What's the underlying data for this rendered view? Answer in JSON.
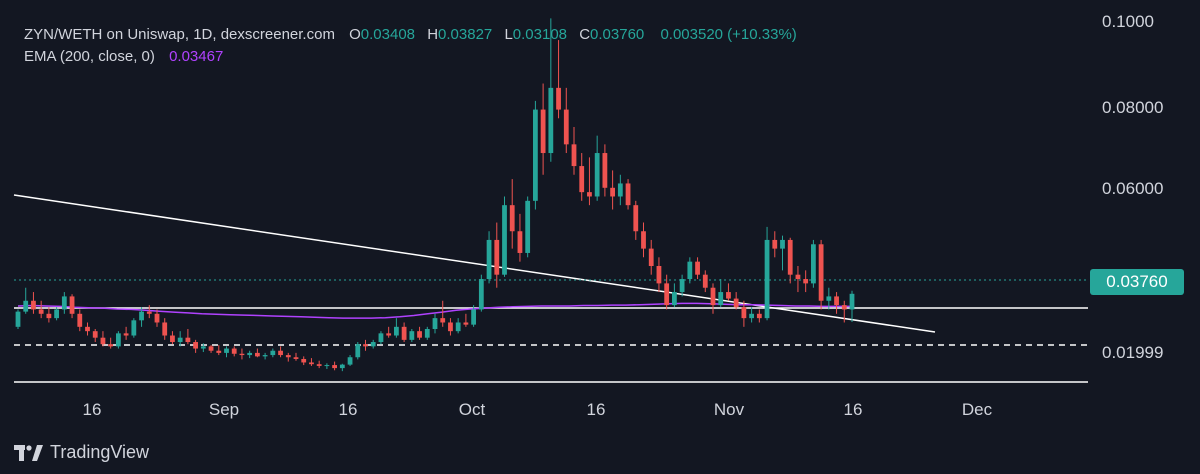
{
  "legend": {
    "title": "ZYN/WETH on Uniswap, 1D, dexscreener.com",
    "o_label": "O",
    "o_value": "0.03408",
    "h_label": "H",
    "h_value": "0.03827",
    "l_label": "L",
    "l_value": "0.03108",
    "c_label": "C",
    "c_value": "0.03760",
    "change": "0.003520 (+10.33%)",
    "ema_label": "EMA (200, close, 0)",
    "ema_value": "0.03467"
  },
  "price_badge": "0.03760",
  "brand": "TradingView",
  "colors": {
    "background": "#131722",
    "up": "#26a69a",
    "down": "#ef5350",
    "ema": "#b042ff",
    "lines": "#ffffff"
  },
  "chart_data": {
    "type": "candlestick",
    "y_ticks": [
      "0.1000",
      "0.08000",
      "0.06000",
      "0.01999"
    ],
    "x_ticks": [
      "16",
      "Sep",
      "16",
      "Oct",
      "16",
      "Nov",
      "16",
      "Dec"
    ],
    "ylim": [
      0.015,
      0.102
    ],
    "last_price": 0.0376,
    "ema_last": 0.03467,
    "candles": [
      [
        0.03,
        0.034,
        0.0295,
        0.0335
      ],
      [
        0.0335,
        0.039,
        0.033,
        0.036
      ],
      [
        0.036,
        0.038,
        0.033,
        0.034
      ],
      [
        0.034,
        0.036,
        0.032,
        0.033
      ],
      [
        0.033,
        0.0345,
        0.031,
        0.032
      ],
      [
        0.032,
        0.0345,
        0.0315,
        0.034
      ],
      [
        0.034,
        0.038,
        0.033,
        0.037
      ],
      [
        0.037,
        0.0375,
        0.032,
        0.033
      ],
      [
        0.033,
        0.034,
        0.029,
        0.03
      ],
      [
        0.03,
        0.031,
        0.028,
        0.029
      ],
      [
        0.029,
        0.0295,
        0.0265,
        0.0275
      ],
      [
        0.0275,
        0.029,
        0.0255,
        0.026
      ],
      [
        0.026,
        0.0275,
        0.025,
        0.0255
      ],
      [
        0.0255,
        0.029,
        0.025,
        0.0285
      ],
      [
        0.0285,
        0.03,
        0.027,
        0.028
      ],
      [
        0.028,
        0.032,
        0.0275,
        0.0315
      ],
      [
        0.0315,
        0.0345,
        0.03,
        0.0335
      ],
      [
        0.0335,
        0.035,
        0.032,
        0.033
      ],
      [
        0.033,
        0.034,
        0.03,
        0.031
      ],
      [
        0.031,
        0.032,
        0.027,
        0.028
      ],
      [
        0.028,
        0.029,
        0.026,
        0.0265
      ],
      [
        0.0265,
        0.029,
        0.0255,
        0.0275
      ],
      [
        0.0275,
        0.0295,
        0.026,
        0.0265
      ],
      [
        0.0265,
        0.027,
        0.024,
        0.025
      ],
      [
        0.025,
        0.0262,
        0.0242,
        0.0255
      ],
      [
        0.0255,
        0.0258,
        0.024,
        0.0245
      ],
      [
        0.0245,
        0.0258,
        0.0235,
        0.024
      ],
      [
        0.024,
        0.0255,
        0.023,
        0.025
      ],
      [
        0.025,
        0.0255,
        0.0232,
        0.0238
      ],
      [
        0.0238,
        0.025,
        0.0225,
        0.0235
      ],
      [
        0.0235,
        0.0245,
        0.0228,
        0.024
      ],
      [
        0.024,
        0.025,
        0.023,
        0.0232
      ],
      [
        0.0232,
        0.024,
        0.0225,
        0.0235
      ],
      [
        0.0235,
        0.025,
        0.023,
        0.0245
      ],
      [
        0.0245,
        0.0255,
        0.023,
        0.0235
      ],
      [
        0.0235,
        0.024,
        0.022,
        0.023
      ],
      [
        0.023,
        0.024,
        0.0222,
        0.0226
      ],
      [
        0.0226,
        0.0232,
        0.0212,
        0.0218
      ],
      [
        0.0218,
        0.0228,
        0.021,
        0.0214
      ],
      [
        0.0214,
        0.0222,
        0.0205,
        0.021
      ],
      [
        0.021,
        0.0216,
        0.0203,
        0.0212
      ],
      [
        0.0212,
        0.022,
        0.02,
        0.0205
      ],
      [
        0.0205,
        0.0215,
        0.0198,
        0.0213
      ],
      [
        0.0213,
        0.0235,
        0.021,
        0.023
      ],
      [
        0.023,
        0.0265,
        0.0225,
        0.026
      ],
      [
        0.026,
        0.027,
        0.0245,
        0.0255
      ],
      [
        0.0255,
        0.027,
        0.025,
        0.0265
      ],
      [
        0.0265,
        0.029,
        0.026,
        0.0285
      ],
      [
        0.0285,
        0.03,
        0.0275,
        0.028
      ],
      [
        0.028,
        0.032,
        0.0275,
        0.03
      ],
      [
        0.03,
        0.031,
        0.0265,
        0.027
      ],
      [
        0.027,
        0.0295,
        0.0265,
        0.029
      ],
      [
        0.029,
        0.03,
        0.027,
        0.0275
      ],
      [
        0.0275,
        0.03,
        0.027,
        0.0295
      ],
      [
        0.0295,
        0.033,
        0.0285,
        0.032
      ],
      [
        0.032,
        0.036,
        0.03,
        0.031
      ],
      [
        0.031,
        0.032,
        0.028,
        0.029
      ],
      [
        0.029,
        0.032,
        0.0285,
        0.031
      ],
      [
        0.031,
        0.033,
        0.03,
        0.0305
      ],
      [
        0.0305,
        0.035,
        0.03,
        0.034
      ],
      [
        0.034,
        0.042,
        0.0335,
        0.041
      ],
      [
        0.041,
        0.052,
        0.04,
        0.05
      ],
      [
        0.05,
        0.054,
        0.039,
        0.042
      ],
      [
        0.042,
        0.06,
        0.0415,
        0.058
      ],
      [
        0.058,
        0.064,
        0.048,
        0.052
      ],
      [
        0.052,
        0.056,
        0.045,
        0.047
      ],
      [
        0.047,
        0.06,
        0.046,
        0.059
      ],
      [
        0.059,
        0.082,
        0.057,
        0.08
      ],
      [
        0.08,
        0.086,
        0.065,
        0.07
      ],
      [
        0.07,
        0.101,
        0.068,
        0.085
      ],
      [
        0.085,
        0.096,
        0.078,
        0.08
      ],
      [
        0.08,
        0.085,
        0.07,
        0.072
      ],
      [
        0.072,
        0.076,
        0.065,
        0.067
      ],
      [
        0.067,
        0.07,
        0.059,
        0.061
      ],
      [
        0.061,
        0.069,
        0.058,
        0.06
      ],
      [
        0.06,
        0.074,
        0.059,
        0.07
      ],
      [
        0.07,
        0.072,
        0.06,
        0.062
      ],
      [
        0.062,
        0.066,
        0.057,
        0.06
      ],
      [
        0.06,
        0.065,
        0.058,
        0.063
      ],
      [
        0.063,
        0.064,
        0.057,
        0.058
      ],
      [
        0.058,
        0.059,
        0.05,
        0.052
      ],
      [
        0.052,
        0.054,
        0.046,
        0.048
      ],
      [
        0.048,
        0.05,
        0.042,
        0.044
      ],
      [
        0.044,
        0.046,
        0.038,
        0.04
      ],
      [
        0.04,
        0.042,
        0.034,
        0.035
      ],
      [
        0.035,
        0.04,
        0.0345,
        0.038
      ],
      [
        0.038,
        0.042,
        0.037,
        0.041
      ],
      [
        0.041,
        0.046,
        0.04,
        0.045
      ],
      [
        0.045,
        0.046,
        0.041,
        0.042
      ],
      [
        0.042,
        0.043,
        0.038,
        0.039
      ],
      [
        0.039,
        0.04,
        0.033,
        0.035
      ],
      [
        0.035,
        0.041,
        0.0345,
        0.038
      ],
      [
        0.038,
        0.04,
        0.036,
        0.0365
      ],
      [
        0.0365,
        0.038,
        0.034,
        0.0345
      ],
      [
        0.0345,
        0.036,
        0.03,
        0.032
      ],
      [
        0.032,
        0.0345,
        0.031,
        0.033
      ],
      [
        0.033,
        0.034,
        0.031,
        0.032
      ],
      [
        0.032,
        0.053,
        0.0315,
        0.05
      ],
      [
        0.05,
        0.052,
        0.046,
        0.048
      ],
      [
        0.048,
        0.051,
        0.043,
        0.05
      ],
      [
        0.05,
        0.0505,
        0.04,
        0.042
      ],
      [
        0.042,
        0.044,
        0.038,
        0.041
      ],
      [
        0.041,
        0.043,
        0.038,
        0.04
      ],
      [
        0.04,
        0.05,
        0.039,
        0.049
      ],
      [
        0.049,
        0.05,
        0.034,
        0.036
      ],
      [
        0.036,
        0.039,
        0.034,
        0.037
      ],
      [
        0.037,
        0.038,
        0.033,
        0.035
      ],
      [
        0.035,
        0.036,
        0.031,
        0.034
      ],
      [
        0.034,
        0.0383,
        0.0311,
        0.0376
      ]
    ],
    "ema": [
      0.0348,
      0.0349,
      0.0348,
      0.0347,
      0.0345,
      0.0344,
      0.0343,
      0.0341,
      0.034,
      0.0338,
      0.0336,
      0.0334,
      0.0332,
      0.033,
      0.0329,
      0.0328,
      0.0327,
      0.0326,
      0.0325,
      0.0324,
      0.0323,
      0.0322,
      0.0321,
      0.032,
      0.032,
      0.032,
      0.0321,
      0.0323,
      0.0326,
      0.033,
      0.0334,
      0.0338,
      0.0341,
      0.0343,
      0.0345,
      0.0346,
      0.0347,
      0.0348,
      0.0348,
      0.0348,
      0.0349,
      0.0349,
      0.035,
      0.035,
      0.0351,
      0.0352,
      0.0353,
      0.0354,
      0.0354,
      0.0353,
      0.0352,
      0.0351,
      0.0351,
      0.035,
      0.0349,
      0.0348,
      0.0348,
      0.0347,
      0.0347,
      0.0347
    ]
  }
}
